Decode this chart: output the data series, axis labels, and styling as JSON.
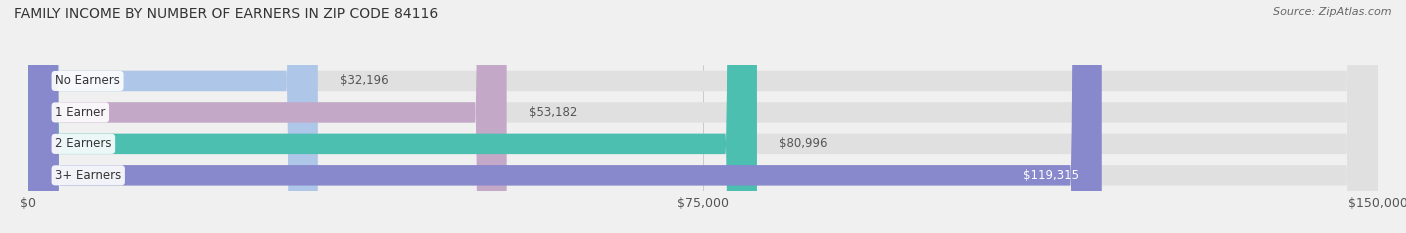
{
  "title": "FAMILY INCOME BY NUMBER OF EARNERS IN ZIP CODE 84116",
  "source": "Source: ZipAtlas.com",
  "categories": [
    "No Earners",
    "1 Earner",
    "2 Earners",
    "3+ Earners"
  ],
  "values": [
    32196,
    53182,
    80996,
    119315
  ],
  "bar_colors": [
    "#aec6e8",
    "#c4a8c8",
    "#4dbfb0",
    "#8888cc"
  ],
  "label_colors": [
    "#555555",
    "#555555",
    "#555555",
    "#ffffff"
  ],
  "value_labels": [
    "$32,196",
    "$53,182",
    "$80,996",
    "$119,315"
  ],
  "xmax": 150000,
  "xtick_labels": [
    "$0",
    "$75,000",
    "$150,000"
  ],
  "background_color": "#f0f0f0",
  "bar_background_color": "#e0e0e0",
  "title_fontsize": 10,
  "source_fontsize": 8,
  "label_fontsize": 8.5,
  "value_fontsize": 8.5
}
